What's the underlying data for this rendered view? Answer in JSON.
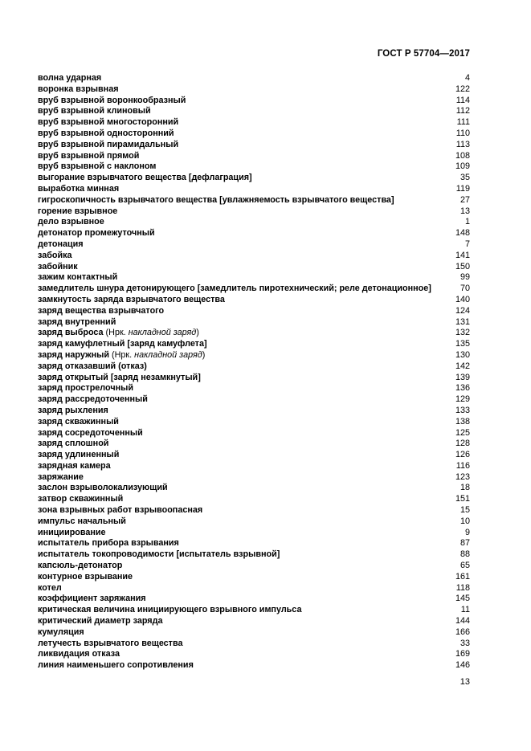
{
  "page": {
    "background_color": "#ffffff",
    "text_color": "#000000"
  },
  "header": {
    "doc_code": "ГОСТ Р 57704—2017"
  },
  "footer": {
    "page_number": "13"
  },
  "index": {
    "entries": [
      {
        "term": "волна ударная",
        "page": "4"
      },
      {
        "term": "воронка взрывная",
        "page": "122"
      },
      {
        "term": "вруб взрывной воронкообразный",
        "page": "114"
      },
      {
        "term": "вруб взрывной клиновый",
        "page": "112"
      },
      {
        "term": "вруб взрывной многосторонний",
        "page": "111"
      },
      {
        "term": "вруб взрывной односторонний",
        "page": "110"
      },
      {
        "term": "вруб взрывной пирамидальный",
        "page": "113"
      },
      {
        "term": "вруб взрывной прямой",
        "page": "108"
      },
      {
        "term": "вруб взрывной с наклоном",
        "page": "109"
      },
      {
        "term": "выгорание взрывчатого вещества [дефлаграция]",
        "page": "35"
      },
      {
        "term": "выработка минная",
        "page": "119"
      },
      {
        "term": "гигроскопичность взрывчатого вещества [увлажняемость взрывчатого вещества]",
        "page": "27"
      },
      {
        "term": "горение взрывное",
        "page": "13"
      },
      {
        "term": "дело взрывное",
        "page": "1"
      },
      {
        "term": "детонатор промежуточный",
        "page": "148"
      },
      {
        "term": "детонация",
        "page": "7"
      },
      {
        "term": "забойка",
        "page": "141"
      },
      {
        "term": "забойник",
        "page": "150"
      },
      {
        "term": "зажим контактный",
        "page": "99"
      },
      {
        "term": "замедлитель шнура детонирующего [замедлитель пиротехнический; реле детонационное]",
        "page": "70"
      },
      {
        "term": "замкнутость заряда взрывчатого вещества",
        "page": "140"
      },
      {
        "term": "заряд вещества взрывчатого",
        "page": "124"
      },
      {
        "term": "заряд внутренний",
        "page": "131"
      },
      {
        "term": "заряд выброса",
        "note_pre": " (Нрк. ",
        "note_italic": "накладной заряд",
        "note_post": ")",
        "page": "132"
      },
      {
        "term": "заряд камуфлетный [заряд камуфлета]",
        "page": "135"
      },
      {
        "term": "заряд наружный",
        "note_pre": " (Нрк. ",
        "note_italic": "накладной заряд",
        "note_post": ")",
        "page": "130"
      },
      {
        "term": "заряд отказавший (отказ)",
        "page": "142"
      },
      {
        "term": "заряд открытый [заряд незамкнутый]",
        "page": "139"
      },
      {
        "term": "заряд прострелочный",
        "page": "136"
      },
      {
        "term": "заряд рассредоточенный",
        "page": "129"
      },
      {
        "term": "заряд рыхления",
        "page": "133"
      },
      {
        "term": "заряд скважинный",
        "page": "138"
      },
      {
        "term": "заряд сосредоточенный",
        "page": "125"
      },
      {
        "term": "заряд сплошной",
        "page": "128"
      },
      {
        "term": "заряд удлиненный",
        "page": "126"
      },
      {
        "term": "зарядная камера",
        "page": "116"
      },
      {
        "term": "заряжание",
        "page": "123"
      },
      {
        "term": "заслон взрыволокализующий",
        "page": "18"
      },
      {
        "term": "затвор скважинный",
        "page": "151"
      },
      {
        "term": "зона взрывных работ взрывоопасная",
        "page": "15"
      },
      {
        "term": "импульс начальный",
        "page": "10"
      },
      {
        "term": "инициирование",
        "page": "9"
      },
      {
        "term": "испытатель прибора взрывания",
        "page": "87"
      },
      {
        "term": "испытатель токопроводимости [испытатель взрывной]",
        "page": "88"
      },
      {
        "term": "капсюль-детонатор",
        "page": "65"
      },
      {
        "term": "контурное взрывание",
        "page": "161"
      },
      {
        "term": "котел",
        "page": "118"
      },
      {
        "term": "коэффициент заряжания",
        "page": "145"
      },
      {
        "term": "критическая величина инициирующего взрывного импульса",
        "page": "11"
      },
      {
        "term": "критический диаметр заряда",
        "page": "144"
      },
      {
        "term": "кумуляция",
        "page": "166"
      },
      {
        "term": "летучесть взрывчатого вещества",
        "page": "33"
      },
      {
        "term": "ликвидация отказа",
        "page": "169"
      },
      {
        "term": "линия наименьшего сопротивления",
        "page": "146"
      }
    ]
  }
}
